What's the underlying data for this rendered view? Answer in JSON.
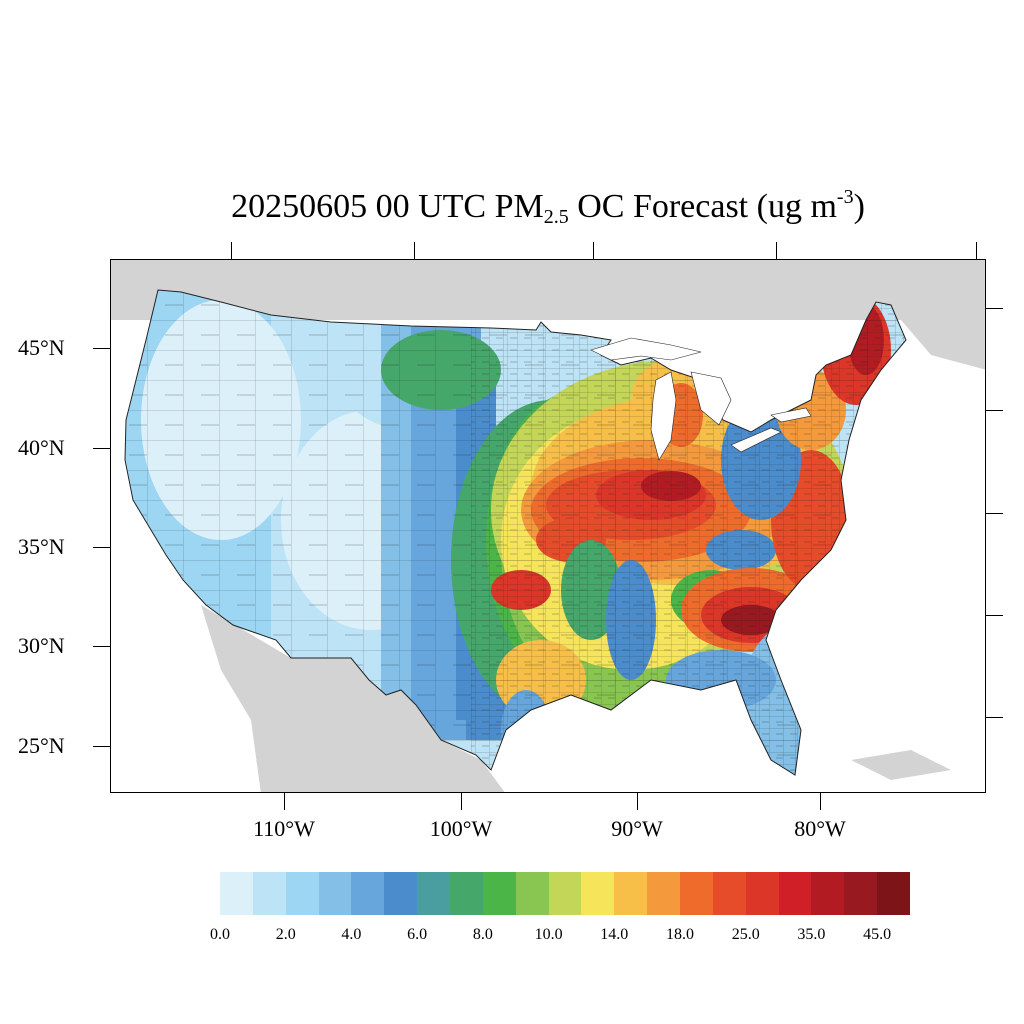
{
  "title": {
    "prefix": "20250605 00 UTC PM",
    "subscript": "2.5",
    "middle": " OC Forecast (ug m",
    "superscript": "-3",
    "suffix": ")"
  },
  "axes": {
    "lat_labels": [
      "45°N",
      "40°N",
      "35°N",
      "30°N",
      "25°N"
    ],
    "lon_labels": [
      "110°W",
      "100°W",
      "90°W",
      "80°W"
    ]
  },
  "colorbar": {
    "colors": [
      "#dcf0fa",
      "#bde3f6",
      "#9dd6f3",
      "#83bfe6",
      "#66a6dd",
      "#4a8ccc",
      "#4a9ea0",
      "#46a76b",
      "#4bb548",
      "#88c651",
      "#c3d657",
      "#f6e45a",
      "#f7bf47",
      "#f59a3c",
      "#ef6b2b",
      "#e64b2a",
      "#dc3628",
      "#d01f26",
      "#b21b22",
      "#991920",
      "#7d1418"
    ],
    "labels": [
      "0.0",
      "2.0",
      "4.0",
      "6.0",
      "8.0",
      "10.0",
      "14.0",
      "18.0",
      "25.0",
      "35.0",
      "45.0"
    ]
  },
  "map": {
    "land_background": "#d3d3d3",
    "water": "#ffffff",
    "region": "Contiguous United States"
  }
}
